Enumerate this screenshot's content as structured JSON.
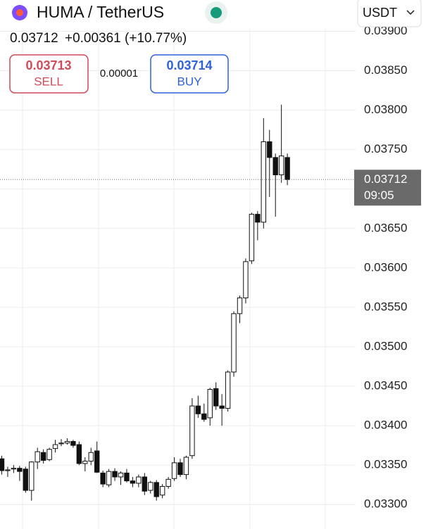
{
  "header": {
    "title": "HUMA / TetherUS",
    "quote": "USDT",
    "price": "0.03712",
    "change": "+0.00361",
    "change_pct": "(+10.77%)",
    "sell_price": "0.03713",
    "sell_label": "SELL",
    "spread": "0.00001",
    "buy_price": "0.03714",
    "buy_label": "BUY"
  },
  "chart_data": {
    "type": "candlestick",
    "open": [
      0.03358,
      0.03343,
      0.03345,
      0.03346,
      0.03345,
      0.03318,
      0.03354,
      0.03366,
      0.03357,
      0.03371,
      0.03377,
      0.03378,
      0.0338,
      0.03376,
      0.03352,
      0.03355,
      0.03368,
      0.0334,
      0.03325,
      0.03342,
      0.03335,
      0.0334,
      0.0333,
      0.03327,
      0.03335,
      0.03318,
      0.03328,
      0.03312,
      0.03323,
      0.03333,
      0.03353,
      0.03338,
      0.03362,
      0.03425,
      0.03415,
      0.0341,
      0.03447,
      0.03425,
      0.03422,
      0.03468,
      0.03542,
      0.03562,
      0.03609,
      0.03668,
      0.03658,
      0.0376,
      0.0374,
      0.03718,
      0.0374
    ],
    "high": [
      0.03362,
      0.03348,
      0.0335,
      0.03349,
      0.03348,
      0.03355,
      0.03372,
      0.0337,
      0.03372,
      0.03382,
      0.03383,
      0.03384,
      0.03382,
      0.0338,
      0.0336,
      0.03372,
      0.0338,
      0.03343,
      0.03345,
      0.03346,
      0.03342,
      0.03345,
      0.03335,
      0.03338,
      0.0334,
      0.0333,
      0.03331,
      0.03326,
      0.03335,
      0.0336,
      0.03358,
      0.03362,
      0.03435,
      0.03438,
      0.03428,
      0.03448,
      0.03455,
      0.0344,
      0.0347,
      0.03545,
      0.03565,
      0.03612,
      0.0367,
      0.03672,
      0.0379,
      0.03775,
      0.03745,
      0.03807,
      0.03745
    ],
    "low": [
      0.03338,
      0.03335,
      0.0334,
      0.0333,
      0.03315,
      0.03305,
      0.03345,
      0.03352,
      0.03355,
      0.03366,
      0.03374,
      0.03376,
      0.03372,
      0.0335,
      0.03342,
      0.0335,
      0.0334,
      0.03322,
      0.03322,
      0.0333,
      0.03325,
      0.03328,
      0.03322,
      0.03322,
      0.03312,
      0.03314,
      0.03305,
      0.03308,
      0.0332,
      0.0333,
      0.03335,
      0.03332,
      0.03358,
      0.0341,
      0.03405,
      0.034,
      0.0342,
      0.034,
      0.03418,
      0.03462,
      0.0353,
      0.03555,
      0.03605,
      0.03635,
      0.0365,
      0.0369,
      0.03665,
      0.03708,
      0.03705
    ],
    "close": [
      0.03343,
      0.03344,
      0.03346,
      0.03342,
      0.03318,
      0.03354,
      0.03367,
      0.03356,
      0.0337,
      0.03376,
      0.03378,
      0.0338,
      0.03375,
      0.03352,
      0.03355,
      0.03366,
      0.03341,
      0.03326,
      0.03342,
      0.03335,
      0.0334,
      0.0333,
      0.03327,
      0.03335,
      0.03317,
      0.03328,
      0.0331,
      0.03323,
      0.03332,
      0.03353,
      0.03338,
      0.0336,
      0.03425,
      0.03415,
      0.03408,
      0.03446,
      0.03425,
      0.03422,
      0.03468,
      0.03542,
      0.03562,
      0.03608,
      0.03668,
      0.03658,
      0.0376,
      0.0374,
      0.03718,
      0.03742,
      0.03712
    ],
    "ylim": [
      0.03269,
      0.03904
    ],
    "yticks": [
      {
        "value": 0.033,
        "label": "0.03300"
      },
      {
        "value": 0.0335,
        "label": "0.03350"
      },
      {
        "value": 0.034,
        "label": "0.03400"
      },
      {
        "value": 0.0345,
        "label": "0.03450"
      },
      {
        "value": 0.035,
        "label": "0.03500"
      },
      {
        "value": 0.0355,
        "label": "0.03550"
      },
      {
        "value": 0.036,
        "label": "0.03600"
      },
      {
        "value": 0.0365,
        "label": "0.03650"
      },
      {
        "value": 0.037,
        "label": "0.03700"
      },
      {
        "value": 0.0375,
        "label": "0.03750"
      },
      {
        "value": 0.038,
        "label": "0.03800"
      },
      {
        "value": 0.0385,
        "label": "0.03850"
      },
      {
        "value": 0.039,
        "label": "0.03900"
      }
    ],
    "last_price": {
      "value": 0.03712,
      "label": "0.03712"
    },
    "countdown": "09:05",
    "up_color": "#ffffff",
    "down_color": "#111111",
    "grid": true
  }
}
